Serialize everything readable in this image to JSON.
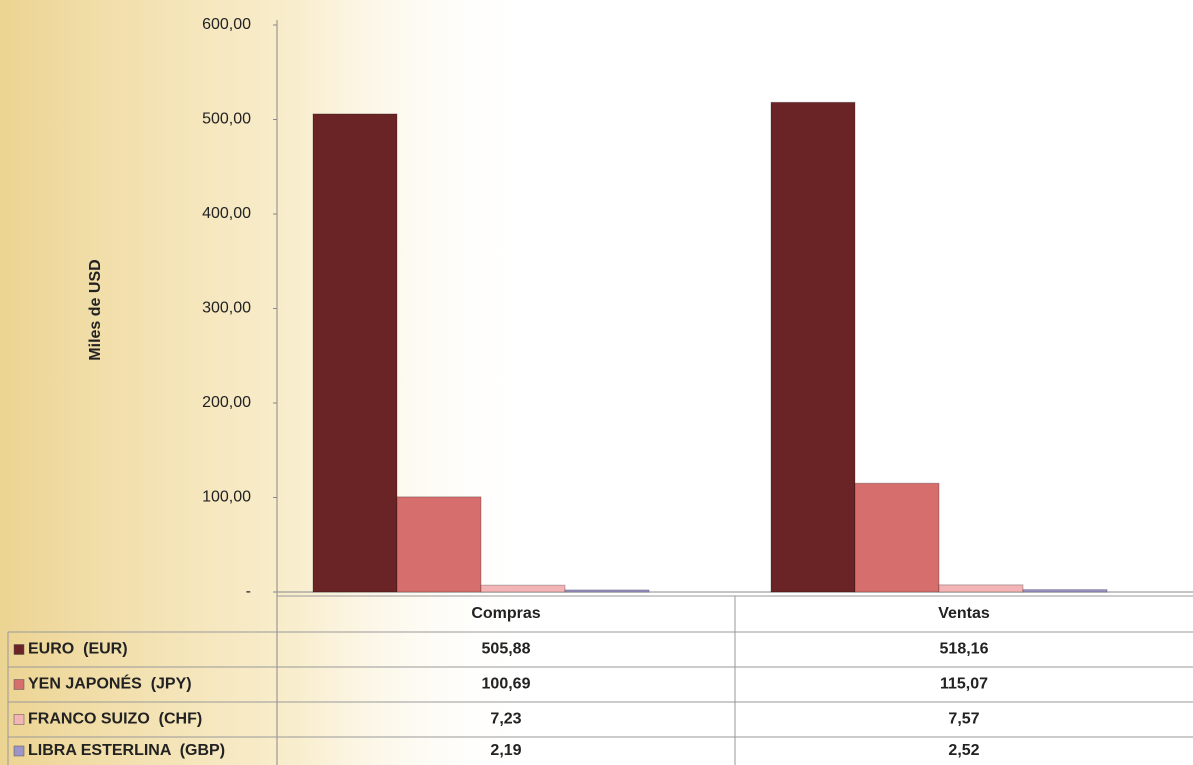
{
  "chart_data": {
    "type": "bar",
    "y_axis_label": "Miles de USD",
    "categories": [
      "Compras",
      "Ventas"
    ],
    "series": [
      {
        "name": "EURO  (EUR)",
        "color": "#6b2426",
        "values": [
          505.88,
          518.16
        ],
        "value_labels": [
          "505,88",
          "518,16"
        ]
      },
      {
        "name": "YEN JAPONÉS  (JPY)",
        "color": "#d76e6e",
        "values": [
          100.69,
          115.07
        ],
        "value_labels": [
          "100,69",
          "115,07"
        ]
      },
      {
        "name": "FRANCO SUIZO  (CHF)",
        "color": "#f2b4b4",
        "values": [
          7.23,
          7.57
        ],
        "value_labels": [
          "7,23",
          "7,57"
        ]
      },
      {
        "name": "LIBRA ESTERLINA  (GBP)",
        "color": "#9d94c8",
        "values": [
          2.19,
          2.52
        ],
        "value_labels": [
          "2,19",
          "2,52"
        ]
      }
    ],
    "ylim": [
      0,
      600
    ],
    "yticks": [
      {
        "value": 0,
        "label": "-"
      },
      {
        "value": 100,
        "label": "100,00"
      },
      {
        "value": 200,
        "label": "200,00"
      },
      {
        "value": 300,
        "label": "300,00"
      },
      {
        "value": 400,
        "label": "400,00"
      },
      {
        "value": 500,
        "label": "500,00"
      },
      {
        "value": 600,
        "label": "600,00"
      }
    ],
    "grid": false
  }
}
